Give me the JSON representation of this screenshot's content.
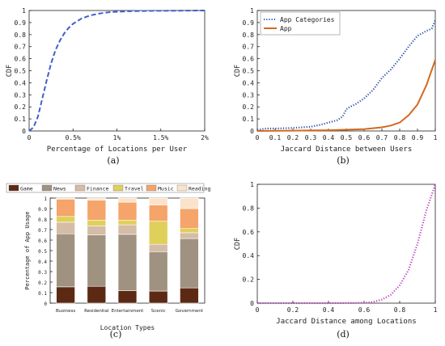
{
  "chart_data": [
    {
      "panel": "a",
      "caption": "(a)",
      "type": "line",
      "xlabel": "Percentage of Locations per User",
      "ylabel": "CDF",
      "xlim": [
        0,
        2
      ],
      "ylim": [
        0,
        1
      ],
      "x_ticks": [
        0,
        0.5,
        1,
        1.5,
        2
      ],
      "x_tick_labels": [
        "0",
        "0.5%",
        "1%",
        "1.5%",
        "2%"
      ],
      "y_ticks": [
        0,
        0.1,
        0.2,
        0.3,
        0.4,
        0.5,
        0.6,
        0.7,
        0.8,
        0.9,
        1
      ],
      "y_tick_labels": [
        "0",
        "0.1",
        "0.2",
        "0.3",
        "0.4",
        "0.5",
        "0.6",
        "0.7",
        "0.8",
        "0.9",
        "1"
      ],
      "grid": false,
      "series": [
        {
          "style": "dashed",
          "color": "#3f5fcf",
          "x": [
            0,
            0.05,
            0.1,
            0.15,
            0.2,
            0.25,
            0.3,
            0.35,
            0.4,
            0.45,
            0.5,
            0.6,
            0.7,
            0.8,
            0.9,
            1.0,
            1.2,
            1.4,
            1.6,
            1.8,
            2.0
          ],
          "y": [
            0,
            0.03,
            0.12,
            0.27,
            0.42,
            0.56,
            0.67,
            0.75,
            0.81,
            0.855,
            0.89,
            0.935,
            0.96,
            0.975,
            0.985,
            0.99,
            0.995,
            0.997,
            0.998,
            0.999,
            1.0
          ]
        }
      ]
    },
    {
      "panel": "b",
      "caption": "(b)",
      "type": "line",
      "xlabel": "Jaccard Distance between Users",
      "ylabel": "CDF",
      "xlim": [
        0,
        1
      ],
      "ylim": [
        0,
        1
      ],
      "x_ticks": [
        0,
        0.1,
        0.2,
        0.3,
        0.4,
        0.5,
        0.6,
        0.7,
        0.8,
        0.9,
        1
      ],
      "x_tick_labels": [
        "0",
        "0.1",
        "0.2",
        "0.3",
        "0.4",
        "0.5",
        "0.6",
        "0.7",
        "0.8",
        "0.9",
        "1"
      ],
      "y_ticks": [
        0,
        0.1,
        0.2,
        0.3,
        0.4,
        0.5,
        0.6,
        0.7,
        0.8,
        0.9,
        1
      ],
      "y_tick_labels": [
        "0",
        "0.1",
        "0.2",
        "0.3",
        "0.4",
        "0.5",
        "0.6",
        "0.7",
        "0.8",
        "0.9",
        "1"
      ],
      "legend": "top-left",
      "grid": false,
      "series": [
        {
          "name": "App Categories",
          "style": "dotted",
          "color": "#2f4fa8",
          "x": [
            0,
            0.05,
            0.1,
            0.2,
            0.3,
            0.35,
            0.4,
            0.45,
            0.48,
            0.5,
            0.52,
            0.55,
            0.6,
            0.65,
            0.7,
            0.75,
            0.8,
            0.85,
            0.9,
            0.95,
            0.98,
            1.0
          ],
          "y": [
            0.01,
            0.02,
            0.02,
            0.025,
            0.035,
            0.05,
            0.07,
            0.09,
            0.12,
            0.18,
            0.2,
            0.22,
            0.27,
            0.34,
            0.44,
            0.51,
            0.6,
            0.7,
            0.79,
            0.83,
            0.85,
            0.92
          ]
        },
        {
          "name": "App",
          "style": "solid",
          "color": "#d2691e",
          "x": [
            0,
            0.2,
            0.4,
            0.6,
            0.7,
            0.75,
            0.8,
            0.85,
            0.9,
            0.95,
            1.0
          ],
          "y": [
            0,
            0.003,
            0.006,
            0.015,
            0.03,
            0.045,
            0.07,
            0.13,
            0.22,
            0.38,
            0.59
          ]
        }
      ]
    },
    {
      "panel": "c",
      "caption": "(c)",
      "type": "bar",
      "stacked": true,
      "xlabel": "Location Types",
      "ylabel": "Percentage of App Usage",
      "ylim": [
        0,
        1
      ],
      "y_ticks": [
        0,
        0.1,
        0.2,
        0.3,
        0.4,
        0.5,
        0.6,
        0.7,
        0.8,
        0.9,
        1
      ],
      "y_tick_labels": [
        "0",
        "0.1",
        "0.2",
        "0.3",
        "0.4",
        "0.5",
        "0.6",
        "0.7",
        "0.8",
        "0.9",
        "1"
      ],
      "legend": "top",
      "categories": [
        "Business",
        "Residential",
        "Entertainment",
        "Scenic",
        "Government"
      ],
      "series": [
        {
          "name": "Game",
          "color": "#5c2a14",
          "values": [
            0.155,
            0.16,
            0.12,
            0.115,
            0.145
          ]
        },
        {
          "name": "News",
          "color": "#a09280",
          "values": [
            0.505,
            0.49,
            0.535,
            0.375,
            0.47
          ]
        },
        {
          "name": "Finance",
          "color": "#d5bca6",
          "values": [
            0.11,
            0.085,
            0.09,
            0.07,
            0.055
          ]
        },
        {
          "name": "Travel",
          "color": "#dfd05a",
          "values": [
            0.055,
            0.055,
            0.045,
            0.22,
            0.04
          ]
        },
        {
          "name": "Music",
          "color": "#f5a46a",
          "values": [
            0.165,
            0.19,
            0.17,
            0.155,
            0.19
          ]
        },
        {
          "name": "Reading",
          "color": "#fbe3cb",
          "values": [
            0.01,
            0.02,
            0.04,
            0.065,
            0.1
          ]
        }
      ]
    },
    {
      "panel": "d",
      "caption": "(d)",
      "type": "line",
      "xlabel": "Jaccard Distance among Locations",
      "ylabel": "CDF",
      "xlim": [
        0,
        1
      ],
      "ylim": [
        0,
        1
      ],
      "x_ticks": [
        0,
        0.2,
        0.4,
        0.6,
        0.8,
        1
      ],
      "x_tick_labels": [
        "0",
        "0.2",
        "0.4",
        "0.6",
        "0.8",
        "1"
      ],
      "y_ticks": [
        0,
        0.2,
        0.4,
        0.6,
        0.8,
        1
      ],
      "y_tick_labels": [
        "0",
        "0.2",
        "0.4",
        "0.6",
        "0.8",
        "1"
      ],
      "grid": false,
      "series": [
        {
          "style": "dotted",
          "color": "#c040c0",
          "x": [
            0,
            0.2,
            0.4,
            0.6,
            0.65,
            0.7,
            0.75,
            0.8,
            0.85,
            0.9,
            0.95,
            1.0
          ],
          "y": [
            0,
            0,
            0,
            0.003,
            0.01,
            0.03,
            0.07,
            0.15,
            0.28,
            0.5,
            0.78,
            1.0
          ]
        }
      ]
    }
  ]
}
